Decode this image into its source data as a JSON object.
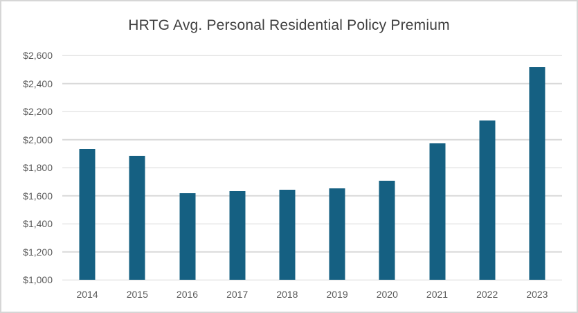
{
  "chart_data": {
    "type": "bar",
    "title": "HRTG Avg. Personal Residential Policy Premium",
    "categories": [
      "2014",
      "2015",
      "2016",
      "2017",
      "2018",
      "2019",
      "2020",
      "2021",
      "2022",
      "2023"
    ],
    "values": [
      1933,
      1885,
      1615,
      1630,
      1640,
      1650,
      1705,
      1975,
      2135,
      2518
    ],
    "xlabel": "",
    "ylabel": "",
    "ylim": [
      1000,
      2600
    ],
    "ytick_step": 200,
    "ytick_labels": [
      "$1,000",
      "$1,200",
      "$1,400",
      "$1,600",
      "$1,800",
      "$2,000",
      "$2,200",
      "$2,400",
      "$2,600"
    ],
    "grid": true,
    "legend_position": "none",
    "bar_color": "#156082",
    "gridline_color": "#d9d9d9",
    "axis_label_color": "#595959",
    "title_color": "#404040",
    "frame_border_color": "#d6d6d6",
    "background_color": "#ffffff"
  }
}
